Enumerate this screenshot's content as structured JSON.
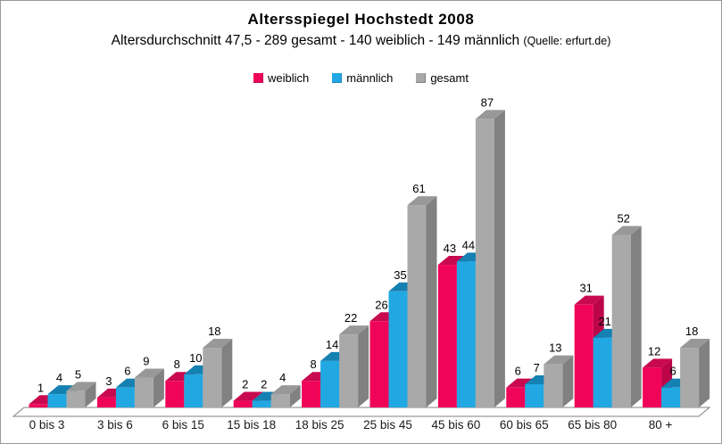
{
  "header": {
    "title": "Altersspiegel Hochstedt 2008",
    "subtitle": "Altersdurchschnitt 47,5 - 289 gesamt - 140 weiblich - 149 männlich",
    "source": "(Quelle: erfurt.de)"
  },
  "chart_data": {
    "type": "bar",
    "projection": "3d",
    "title": "Altersspiegel Hochstedt 2008",
    "categories": [
      "0 bis 3",
      "3 bis 6",
      "6 bis 15",
      "15 bis 18",
      "18 bis 25",
      "25 bis 45",
      "45 bis 60",
      "60 bis 65",
      "65 bis 80",
      "80 +"
    ],
    "series": [
      {
        "name": "weiblich",
        "color": "#EF0459",
        "color_top": "#C9094F",
        "color_side": "#BC0449",
        "values": [
          1,
          3,
          8,
          2,
          8,
          26,
          43,
          6,
          31,
          12
        ]
      },
      {
        "name": "männlich",
        "color": "#21A8E3",
        "color_top": "#1580B2",
        "color_side": "#1A87BA",
        "values": [
          4,
          6,
          10,
          2,
          14,
          35,
          44,
          7,
          21,
          6
        ]
      },
      {
        "name": "gesamt",
        "color": "#A9A9A9",
        "color_top": "#989898",
        "color_side": "#818181",
        "values": [
          5,
          9,
          18,
          4,
          22,
          61,
          87,
          13,
          52,
          18
        ]
      }
    ],
    "value_labels": true,
    "legend_position": "top",
    "ylim": [
      0,
      90
    ],
    "axes_visible": false,
    "grid": false,
    "style": {
      "floor_fill": "#ffffff",
      "floor_stroke": "#808080",
      "value_label_color": "#000000",
      "category_label_color": "#1a1a1a"
    }
  }
}
